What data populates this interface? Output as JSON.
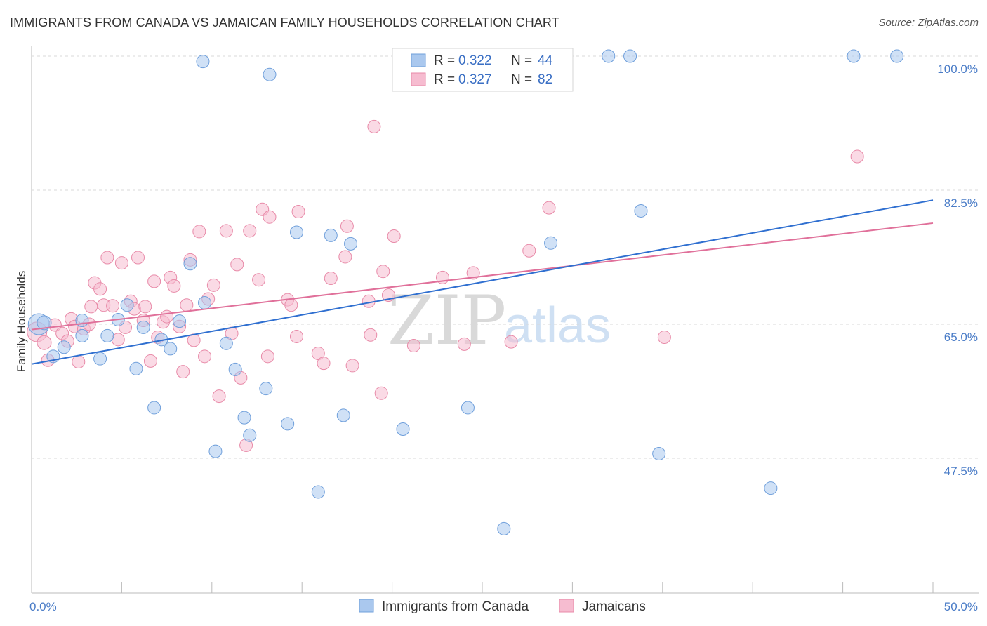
{
  "title": "IMMIGRANTS FROM CANADA VS JAMAICAN FAMILY HOUSEHOLDS CORRELATION CHART",
  "source": "Source: ZipAtlas.com",
  "watermark": {
    "zip": "ZIP",
    "atlas": "atlas"
  },
  "colors": {
    "blue_fill": "#aac8ee",
    "blue_stroke": "#6f9fdb",
    "blue_line": "#2f6fd0",
    "pink_fill": "#f6bcd0",
    "pink_stroke": "#e88aa8",
    "pink_line": "#e0709a",
    "grid": "#d9d9d9",
    "axis_label": "#4a7cc7"
  },
  "legend": {
    "r1_label": "R = ",
    "r1_value": "0.322",
    "n1_label": "N = ",
    "n1_value": "44",
    "r2_label": "R = ",
    "r2_value": "0.327",
    "n2_label": "N = ",
    "n2_value": "82"
  },
  "chart_data": {
    "type": "scatter",
    "xlabel": "",
    "ylabel": "Family Households",
    "xlim": [
      0,
      50
    ],
    "ylim": [
      33,
      102
    ],
    "x_tick_labels": [
      {
        "value": 0,
        "label": "0.0%"
      },
      {
        "value": 50,
        "label": "50.0%"
      }
    ],
    "y_ticks": [
      {
        "value": 100,
        "label": "100.0%"
      },
      {
        "value": 82.5,
        "label": "82.5%"
      },
      {
        "value": 65,
        "label": "65.0%"
      },
      {
        "value": 47.5,
        "label": "47.5%"
      }
    ],
    "grid": true,
    "legend_position": "top-center",
    "series": [
      {
        "name": "Immigrants from Canada",
        "color": "blue",
        "trend": {
          "x": [
            0,
            50
          ],
          "y": [
            59.8,
            81.2
          ]
        },
        "points": [
          [
            0.4,
            65.0,
            14
          ],
          [
            0.7,
            65.2,
            9
          ],
          [
            1.2,
            60.8,
            8
          ],
          [
            1.8,
            62.0,
            8
          ],
          [
            2.8,
            63.5,
            8
          ],
          [
            2.8,
            65.5,
            8
          ],
          [
            3.8,
            60.5,
            8
          ],
          [
            4.2,
            63.5,
            8
          ],
          [
            4.8,
            65.6,
            8
          ],
          [
            5.3,
            67.5,
            8
          ],
          [
            5.8,
            59.2,
            8
          ],
          [
            6.2,
            64.6,
            8
          ],
          [
            6.8,
            54.1,
            8
          ],
          [
            7.2,
            63.0,
            8
          ],
          [
            7.7,
            61.8,
            8
          ],
          [
            8.2,
            65.4,
            8
          ],
          [
            8.8,
            72.9,
            8
          ],
          [
            9.5,
            99.3,
            8
          ],
          [
            9.6,
            67.8,
            8
          ],
          [
            10.2,
            48.4,
            8
          ],
          [
            10.8,
            62.5,
            8
          ],
          [
            11.3,
            59.1,
            8
          ],
          [
            11.8,
            52.8,
            8
          ],
          [
            12.1,
            50.5,
            8
          ],
          [
            13.0,
            56.6,
            8
          ],
          [
            13.2,
            97.6,
            8
          ],
          [
            14.2,
            52.0,
            8
          ],
          [
            14.7,
            77.0,
            8
          ],
          [
            15.9,
            43.1,
            8
          ],
          [
            16.6,
            76.6,
            8
          ],
          [
            17.3,
            53.1,
            8
          ],
          [
            17.7,
            75.5,
            8
          ],
          [
            20.6,
            51.3,
            8
          ],
          [
            24.2,
            54.1,
            8
          ],
          [
            26.2,
            38.3,
            8
          ],
          [
            28.8,
            75.6,
            8
          ],
          [
            32.0,
            100.0,
            8
          ],
          [
            33.2,
            100.0,
            8
          ],
          [
            33.8,
            79.8,
            8
          ],
          [
            34.8,
            48.1,
            8
          ],
          [
            41.0,
            43.6,
            8
          ],
          [
            45.6,
            100.0,
            8
          ],
          [
            48.0,
            100.0,
            8
          ]
        ]
      },
      {
        "name": "Jamaicans",
        "color": "pink",
        "trend": {
          "x": [
            0,
            50
          ],
          "y": [
            64.3,
            78.2
          ]
        },
        "points": [
          [
            0.3,
            64.0,
            13
          ],
          [
            0.7,
            62.6,
            9
          ],
          [
            0.9,
            60.3,
            8
          ],
          [
            1.3,
            64.9,
            8
          ],
          [
            1.7,
            63.8,
            8
          ],
          [
            2.0,
            62.8,
            8
          ],
          [
            2.2,
            65.7,
            8
          ],
          [
            2.4,
            64.7,
            8
          ],
          [
            2.6,
            60.1,
            8
          ],
          [
            2.9,
            64.4,
            8
          ],
          [
            3.2,
            65.0,
            8
          ],
          [
            3.3,
            67.3,
            8
          ],
          [
            3.5,
            70.4,
            8
          ],
          [
            3.8,
            69.6,
            8
          ],
          [
            4.0,
            67.5,
            8
          ],
          [
            4.2,
            73.7,
            8
          ],
          [
            4.5,
            67.4,
            8
          ],
          [
            4.8,
            63.0,
            8
          ],
          [
            5.0,
            73.0,
            8
          ],
          [
            5.2,
            64.6,
            8
          ],
          [
            5.5,
            68.0,
            8
          ],
          [
            5.7,
            67.0,
            8
          ],
          [
            5.9,
            73.7,
            8
          ],
          [
            6.2,
            65.5,
            8
          ],
          [
            6.3,
            67.3,
            8
          ],
          [
            6.6,
            60.2,
            8
          ],
          [
            6.8,
            70.6,
            8
          ],
          [
            7.0,
            63.3,
            8
          ],
          [
            7.3,
            65.3,
            8
          ],
          [
            7.5,
            66.0,
            8
          ],
          [
            7.7,
            71.1,
            8
          ],
          [
            7.9,
            70.0,
            8
          ],
          [
            8.2,
            64.7,
            8
          ],
          [
            8.4,
            58.8,
            8
          ],
          [
            8.6,
            67.5,
            8
          ],
          [
            8.8,
            73.4,
            8
          ],
          [
            9.0,
            62.9,
            8
          ],
          [
            9.3,
            77.1,
            8
          ],
          [
            9.6,
            60.8,
            8
          ],
          [
            9.8,
            68.3,
            8
          ],
          [
            10.1,
            70.1,
            8
          ],
          [
            10.4,
            55.6,
            8
          ],
          [
            10.8,
            77.2,
            8
          ],
          [
            11.1,
            63.8,
            8
          ],
          [
            11.4,
            72.8,
            8
          ],
          [
            11.6,
            58.0,
            8
          ],
          [
            11.9,
            49.2,
            8
          ],
          [
            12.1,
            77.2,
            8
          ],
          [
            12.6,
            70.8,
            8
          ],
          [
            12.8,
            80.0,
            8
          ],
          [
            13.1,
            60.8,
            8
          ],
          [
            13.2,
            79.0,
            8
          ],
          [
            14.2,
            68.2,
            8
          ],
          [
            14.4,
            67.5,
            8
          ],
          [
            14.7,
            63.4,
            8
          ],
          [
            14.8,
            79.7,
            8
          ],
          [
            15.9,
            61.2,
            8
          ],
          [
            16.2,
            59.9,
            8
          ],
          [
            16.6,
            71.0,
            8
          ],
          [
            17.4,
            73.8,
            8
          ],
          [
            17.5,
            77.8,
            8
          ],
          [
            17.8,
            59.6,
            8
          ],
          [
            18.7,
            68.0,
            8
          ],
          [
            18.8,
            63.6,
            8
          ],
          [
            19.0,
            90.8,
            8
          ],
          [
            19.4,
            56.0,
            8
          ],
          [
            19.5,
            71.9,
            8
          ],
          [
            19.8,
            68.8,
            8
          ],
          [
            20.1,
            76.5,
            8
          ],
          [
            21.2,
            62.2,
            8
          ],
          [
            22.8,
            71.1,
            8
          ],
          [
            24.0,
            62.4,
            8
          ],
          [
            24.5,
            71.7,
            8
          ],
          [
            26.6,
            62.7,
            8
          ],
          [
            27.6,
            74.6,
            8
          ],
          [
            28.7,
            80.2,
            8
          ],
          [
            35.1,
            63.3,
            8
          ],
          [
            45.8,
            86.9,
            8
          ]
        ]
      }
    ]
  }
}
